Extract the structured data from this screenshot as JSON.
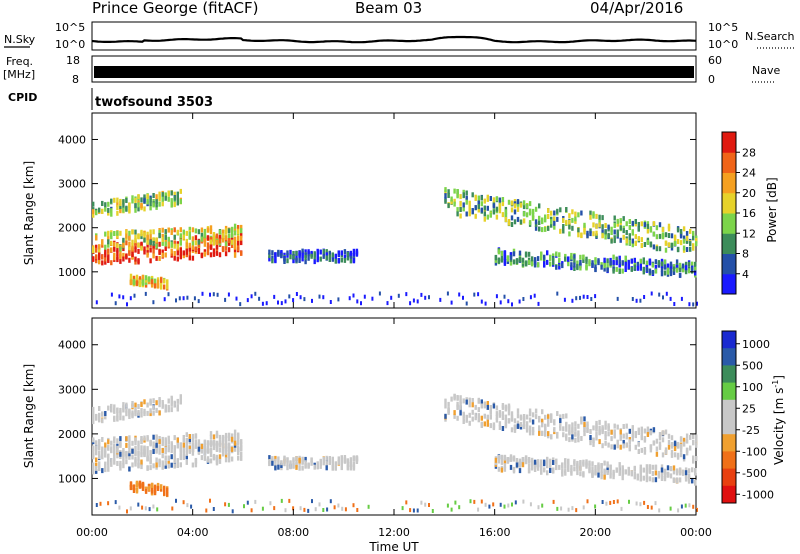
{
  "header": {
    "station": "Prince George (fitACF)",
    "beam": "Beam 03",
    "date": "04/Apr/2016"
  },
  "panels": {
    "nsky": {
      "left_label": "N.Sky",
      "ticks_left": [
        "10^5",
        "10^0"
      ],
      "ticks_right": [
        "10^5",
        "10^0"
      ],
      "right_label": "N.Search"
    },
    "freq": {
      "left_label_1": "Freq.",
      "left_label_2": "[MHz]",
      "ticks_left": [
        "18",
        "8"
      ],
      "ticks_right": [
        "60",
        "0"
      ],
      "right_label": "Nave"
    },
    "cpid": {
      "left_label": "CPID",
      "program": "twofsound 3503"
    }
  },
  "colors": {
    "power": [
      "#1a1aff",
      "#2450a8",
      "#3c8c5a",
      "#7cd44a",
      "#e6d22a",
      "#f5a020",
      "#f06418",
      "#e01a10"
    ],
    "velocity": [
      "#1a2ad0",
      "#2a5aa8",
      "#3c8c5a",
      "#66cc44",
      "#c8c8c8",
      "#c8c8c8",
      "#f0a030",
      "#f07018",
      "#e84010",
      "#e01010"
    ]
  },
  "chart_data": [
    {
      "type": "heatmap",
      "name": "power",
      "ylabel": "Slant Range [km]",
      "y_ticks": [
        1000,
        2000,
        3000,
        4000
      ],
      "ylim": [
        180,
        4600
      ],
      "xlim": [
        0,
        24
      ],
      "colorbar_label": "Power [dB]",
      "colorbar_ticks": [
        "4",
        "8",
        "12",
        "16",
        "20",
        "24",
        "28"
      ],
      "regions": [
        {
          "x": [
            0.0,
            6.0
          ],
          "range_start": [
            1250,
            1500
          ],
          "range_end": [
            1250,
            2000
          ],
          "width": 300,
          "level": 0.9
        },
        {
          "x": [
            0.0,
            6.0
          ],
          "range_start": [
            1550,
            1800
          ],
          "range_end": [
            1500,
            2200
          ],
          "width": 250,
          "level": 0.55
        },
        {
          "x": [
            0.0,
            3.5
          ],
          "range_start": [
            2300,
            2500
          ],
          "range_end": [
            2500,
            2900
          ],
          "width": 200,
          "level": 0.45
        },
        {
          "x": [
            7.0,
            10.5
          ],
          "range_start": [
            1350,
            1350
          ],
          "range_end": [
            1350,
            1350
          ],
          "width": 150,
          "level": 0.15
        },
        {
          "x": [
            14.0,
            24.0
          ],
          "range_start": [
            2900,
            2300
          ],
          "range_end": [
            1600,
            1700
          ],
          "width": 350,
          "level": 0.4
        },
        {
          "x": [
            16.0,
            24.0
          ],
          "range_start": [
            1400,
            1300
          ],
          "range_end": [
            1100,
            1000
          ],
          "width": 200,
          "level": 0.25
        },
        {
          "x": [
            1.5,
            3.0
          ],
          "range_start": [
            850,
            800
          ],
          "range_end": [
            750,
            700
          ],
          "width": 120,
          "level": 0.6
        }
      ],
      "x_ticks": [
        "00:00",
        "04:00",
        "08:00",
        "12:00",
        "16:00",
        "20:00",
        "00:00"
      ],
      "xlabel": "Time UT"
    },
    {
      "type": "heatmap",
      "name": "velocity",
      "ylabel": "Slant Range [km]",
      "y_ticks": [
        1000,
        2000,
        3000,
        4000
      ],
      "ylim": [
        180,
        4600
      ],
      "xlim": [
        0,
        24
      ],
      "colorbar_label": "Velocity [m s^-1]",
      "colorbar_ticks": [
        "1000",
        "500",
        "100",
        "25",
        "-25",
        "-100",
        "-500",
        "-1000"
      ],
      "x_ticks": [
        "00:00",
        "04:00",
        "08:00",
        "12:00",
        "16:00",
        "20:00",
        "00:00"
      ],
      "xlabel": "Time UT"
    }
  ]
}
